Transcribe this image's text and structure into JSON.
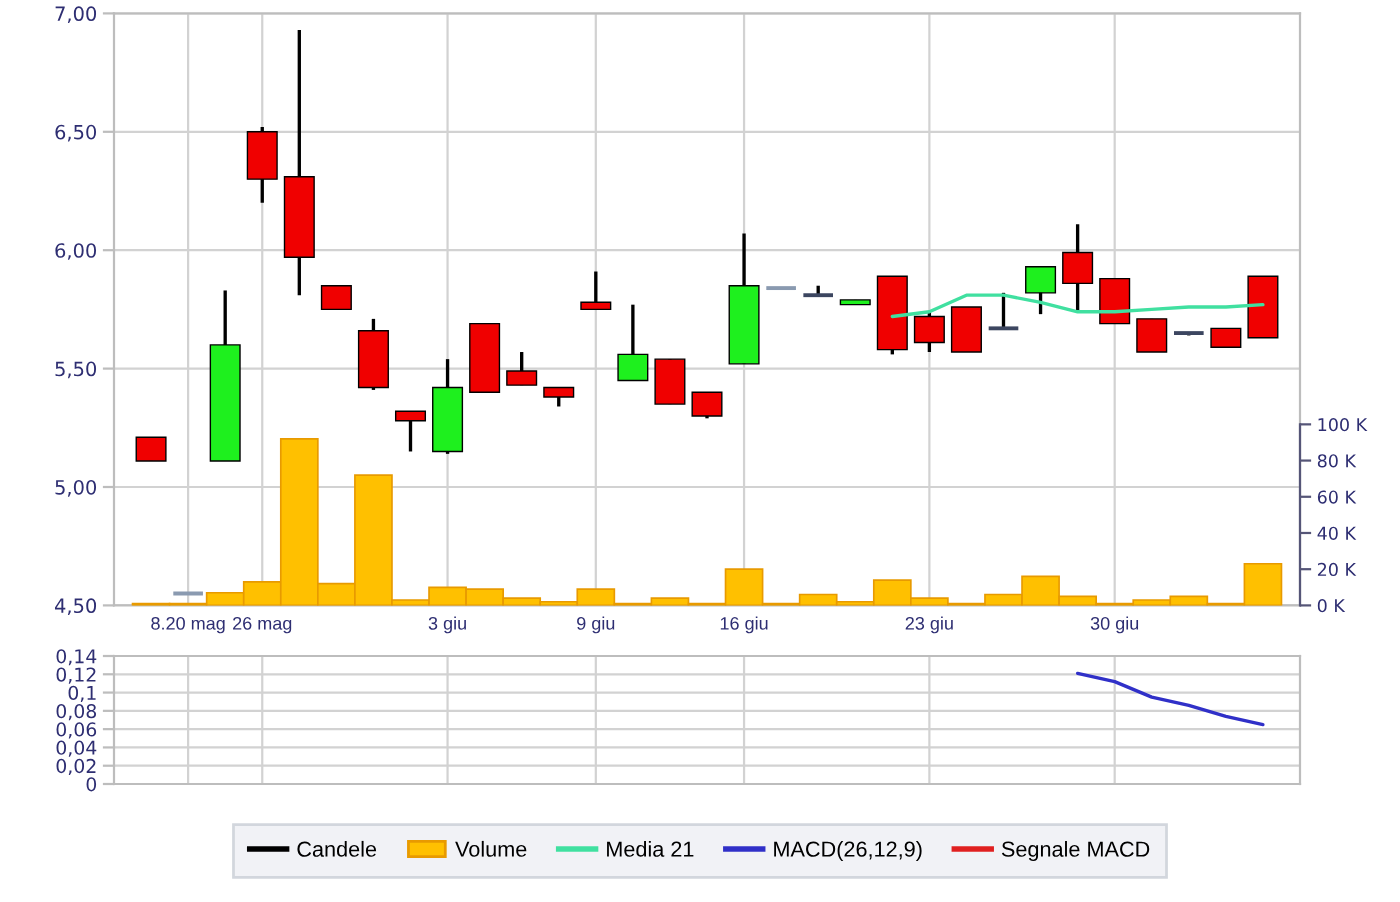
{
  "chart_data": [
    {
      "type": "candlestick",
      "categories": [
        null,
        "8.20 mag",
        null,
        "26 mag",
        null,
        null,
        null,
        null,
        "3 giu",
        null,
        null,
        null,
        "9 giu",
        null,
        null,
        null,
        "16 giu",
        null,
        null,
        null,
        null,
        "23 giu",
        null,
        null,
        null,
        null,
        "30 giu",
        null,
        null,
        null,
        null
      ],
      "series": [
        {
          "name": "Candele",
          "type": "candlestick",
          "color": "#000000",
          "colors": [
            "#f00000",
            "#8a9ab0",
            "#1ef01e",
            "#f00000",
            "#f00000",
            "#f00000",
            "#f00000",
            "#f00000",
            "#1ef01e",
            "#f00000",
            "#f00000",
            "#f00000",
            "#f00000",
            "#1ef01e",
            "#f00000",
            "#f00000",
            "#1ef01e",
            "#8a9ab0",
            "#3c4660",
            "#1ef01e",
            "#f00000",
            "#f00000",
            "#f00000",
            "#3c4660",
            "#1ef01e",
            "#f00000",
            "#f00000",
            "#f00000",
            "#3c4660",
            "#f00000",
            "#f00000"
          ],
          "ohlc": [
            [
              5.21,
              5.21,
              5.11,
              5.11
            ],
            [
              4.55,
              4.55,
              4.55,
              4.55
            ],
            [
              5.11,
              5.83,
              5.11,
              5.6
            ],
            [
              6.5,
              6.52,
              6.2,
              6.3
            ],
            [
              6.31,
              6.93,
              5.81,
              5.97
            ],
            [
              5.85,
              5.85,
              5.75,
              5.75
            ],
            [
              5.66,
              5.71,
              5.41,
              5.42
            ],
            [
              5.32,
              5.32,
              5.15,
              5.28
            ],
            [
              5.15,
              5.54,
              5.14,
              5.42
            ],
            [
              5.69,
              5.69,
              5.4,
              5.4
            ],
            [
              5.49,
              5.57,
              5.43,
              5.43
            ],
            [
              5.42,
              5.42,
              5.34,
              5.38
            ],
            [
              5.78,
              5.91,
              5.75,
              5.75
            ],
            [
              5.45,
              5.77,
              5.45,
              5.56
            ],
            [
              5.54,
              5.54,
              5.35,
              5.35
            ],
            [
              5.4,
              5.4,
              5.29,
              5.3
            ],
            [
              5.52,
              6.07,
              5.52,
              5.85
            ],
            [
              5.84,
              5.84,
              5.84,
              5.84
            ],
            [
              5.81,
              5.85,
              5.81,
              5.81
            ],
            [
              5.77,
              5.79,
              5.77,
              5.79
            ],
            [
              5.89,
              5.89,
              5.56,
              5.58
            ],
            [
              5.72,
              5.74,
              5.57,
              5.61
            ],
            [
              5.76,
              5.76,
              5.57,
              5.57
            ],
            [
              5.67,
              5.82,
              5.67,
              5.67
            ],
            [
              5.82,
              5.93,
              5.73,
              5.93
            ],
            [
              5.99,
              6.11,
              5.74,
              5.86
            ],
            [
              5.88,
              5.88,
              5.69,
              5.69
            ],
            [
              5.71,
              5.71,
              5.57,
              5.57
            ],
            [
              5.65,
              5.65,
              5.64,
              5.65
            ],
            [
              5.67,
              5.67,
              5.59,
              5.59
            ],
            [
              5.89,
              5.89,
              5.63,
              5.63
            ]
          ]
        },
        {
          "name": "Volume",
          "type": "bar",
          "axis": "y2",
          "color": "#ffc000",
          "values": [
            1,
            1,
            7,
            13,
            92,
            12,
            72,
            3,
            10,
            9,
            4,
            2,
            9,
            1,
            4,
            1,
            20,
            1,
            6,
            2,
            14,
            4,
            1,
            6,
            16,
            5,
            1,
            3,
            5,
            1,
            23
          ]
        },
        {
          "name": "Media 21",
          "type": "line",
          "color": "#40e0a0",
          "values": [
            null,
            null,
            null,
            null,
            null,
            null,
            null,
            null,
            null,
            null,
            null,
            null,
            null,
            null,
            null,
            null,
            null,
            null,
            null,
            null,
            5.72,
            5.74,
            5.81,
            5.81,
            5.78,
            5.74,
            5.74,
            5.75,
            5.76,
            5.76,
            5.77
          ]
        }
      ],
      "ylim": [
        4.5,
        7.0
      ],
      "yticks": [
        {
          "value": 4.5,
          "label": "4,50"
        },
        {
          "value": 5.0,
          "label": "5,00"
        },
        {
          "value": 5.5,
          "label": "5,50"
        },
        {
          "value": 6.0,
          "label": "6,00"
        },
        {
          "value": 6.5,
          "label": "6,50"
        },
        {
          "value": 7.0,
          "label": "7,00"
        }
      ],
      "y2lim": [
        0,
        327
      ],
      "y2ticks": [
        {
          "value": 0,
          "label": "0 K"
        },
        {
          "value": 20,
          "label": "20 K"
        },
        {
          "value": 40,
          "label": "40 K"
        },
        {
          "value": 60,
          "label": "60 K"
        },
        {
          "value": 80,
          "label": "80 K"
        },
        {
          "value": 100,
          "label": "100 K"
        }
      ],
      "grid": true,
      "legend": "bottom"
    },
    {
      "type": "line",
      "categories": [
        null,
        null,
        null,
        null,
        null,
        null,
        null,
        null,
        null,
        null,
        null,
        null,
        null,
        null,
        null,
        null,
        null,
        null,
        null,
        null,
        null,
        null,
        null,
        null,
        null,
        null,
        null,
        null,
        null,
        null,
        null
      ],
      "series": [
        {
          "name": "MACD(26,12,9)",
          "color": "#3030c8",
          "values": [
            null,
            null,
            null,
            null,
            null,
            null,
            null,
            null,
            null,
            null,
            null,
            null,
            null,
            null,
            null,
            null,
            null,
            null,
            null,
            null,
            null,
            null,
            null,
            null,
            null,
            0.121,
            0.112,
            0.095,
            0.086,
            0.074,
            0.065
          ]
        },
        {
          "name": "Segnale MACD",
          "color": "#e02020",
          "values": [
            null,
            null,
            null,
            null,
            null,
            null,
            null,
            null,
            null,
            null,
            null,
            null,
            null,
            null,
            null,
            null,
            null,
            null,
            null,
            null,
            null,
            null,
            null,
            null,
            null,
            null,
            null,
            null,
            null,
            null,
            null
          ]
        }
      ],
      "ylim": [
        0,
        0.14
      ],
      "yticks": [
        0,
        {
          "value": 0.02,
          "label": "0,02"
        },
        {
          "value": 0.04,
          "label": "0,04"
        },
        {
          "value": 0.06,
          "label": "0,06"
        },
        {
          "value": 0.08,
          "label": "0,08"
        },
        {
          "value": 0.1,
          "label": "0,1"
        },
        {
          "value": 0.12,
          "label": "0,12"
        },
        {
          "value": 0.14,
          "label": "0,14"
        }
      ],
      "tick_labels": "y",
      "grid": true
    }
  ]
}
